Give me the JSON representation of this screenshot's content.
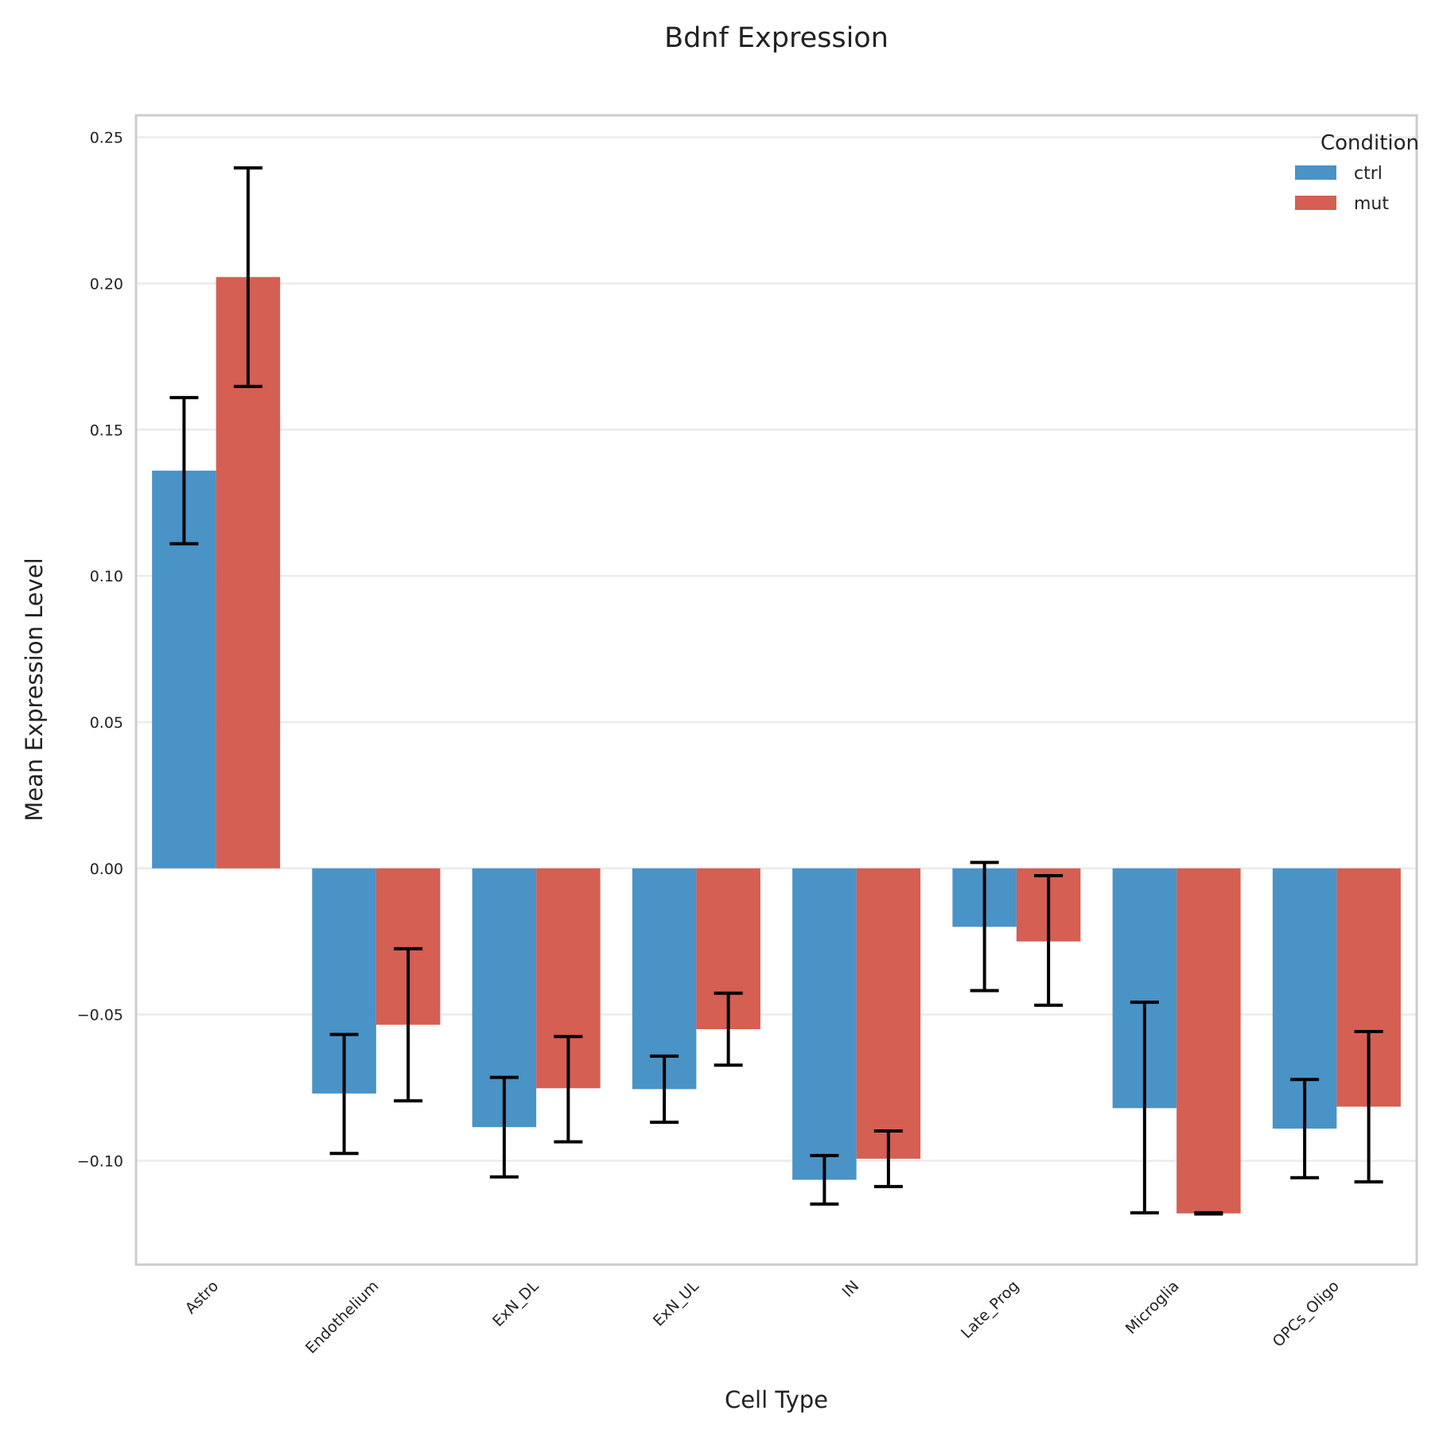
{
  "chart_data": {
    "type": "bar",
    "title": "Bdnf Expression",
    "xlabel": "Cell Type",
    "ylabel": "Mean Expression Level",
    "categories": [
      "Astro",
      "Endothelium",
      "ExN_DL",
      "ExN_UL",
      "IN",
      "Late_Prog",
      "Microglia",
      "OPCs_Oligo"
    ],
    "series": [
      {
        "name": "ctrl",
        "color": "#4A93C6",
        "values": [
          0.136,
          -0.077,
          -0.0885,
          -0.0755,
          -0.1065,
          -0.02,
          -0.082,
          -0.089
        ],
        "err_low": [
          0.111,
          -0.0975,
          -0.1055,
          -0.0868,
          -0.1148,
          -0.0418,
          -0.1178,
          -0.1058
        ],
        "err_high": [
          0.161,
          -0.0568,
          -0.0715,
          -0.0642,
          -0.0982,
          0.002,
          -0.0458,
          -0.0722
        ]
      },
      {
        "name": "mut",
        "color": "#D45F52",
        "values": [
          0.2022,
          -0.0535,
          -0.0752,
          -0.055,
          -0.0993,
          -0.025,
          -0.118,
          -0.0815
        ],
        "err_low": [
          0.1648,
          -0.0795,
          -0.0935,
          -0.0673,
          -0.1088,
          -0.0468,
          -0.1182,
          -0.1072
        ],
        "err_high": [
          0.2395,
          -0.0275,
          -0.0575,
          -0.0427,
          -0.0898,
          -0.0025,
          -0.1178,
          -0.0558
        ]
      }
    ],
    "ylim": [
      -0.1355,
      0.2575
    ],
    "yticks": [
      -0.1,
      -0.05,
      0.0,
      0.05,
      0.1,
      0.15,
      0.2,
      0.25
    ],
    "ytick_labels": [
      "−0.10",
      "−0.05",
      "0.00",
      "0.05",
      "0.10",
      "0.15",
      "0.20",
      "0.25"
    ],
    "grid": "horizontal",
    "legend": {
      "title": "Condition",
      "position": "top-right"
    }
  }
}
